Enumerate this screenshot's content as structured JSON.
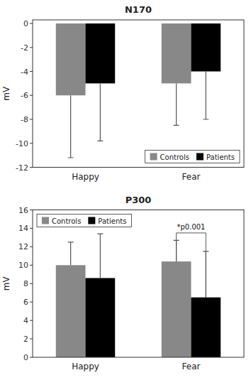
{
  "chart_data": [
    {
      "type": "bar",
      "title": "N170",
      "y_label": "mV",
      "categories": [
        "Happy",
        "Fear"
      ],
      "series": [
        {
          "name": "Controls",
          "color": "#888888",
          "values": [
            -6.0,
            -5.0
          ],
          "errors_down": [
            5.2,
            3.5
          ]
        },
        {
          "name": "Patients",
          "color": "#000000",
          "values": [
            -5.0,
            -4.0
          ],
          "errors_down": [
            4.8,
            4.0
          ]
        }
      ],
      "ylim": [
        -12,
        0.3
      ],
      "yticks": [
        0,
        -2,
        -4,
        -6,
        -8,
        -10,
        -12
      ],
      "legend": "lower right"
    },
    {
      "type": "bar",
      "title": "P300",
      "y_label": "mV",
      "categories": [
        "Happy",
        "Fear"
      ],
      "series": [
        {
          "name": "Controls",
          "color": "#888888",
          "values": [
            10.0,
            10.4
          ],
          "errors_up": [
            2.5,
            2.3
          ]
        },
        {
          "name": "Patients",
          "color": "#000000",
          "values": [
            8.6,
            6.5
          ],
          "errors_up": [
            4.8,
            5.0
          ]
        }
      ],
      "ylim": [
        0,
        16
      ],
      "yticks": [
        0,
        2,
        4,
        6,
        8,
        10,
        12,
        14,
        16
      ],
      "annotations": [
        {
          "text": "*p0.001",
          "y": 13.5,
          "category": "Fear"
        }
      ],
      "legend": "upper left"
    }
  ]
}
